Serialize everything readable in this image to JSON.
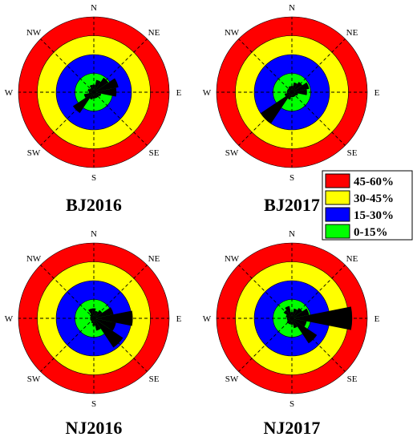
{
  "colors": {
    "band_0_15": "#00ff00",
    "band_15_30": "#0000ff",
    "band_30_45": "#ffff00",
    "band_45_60": "#ff0000",
    "petal": "#000000",
    "guides": "#000000"
  },
  "directions": [
    "N",
    "NE",
    "E",
    "SE",
    "S",
    "SW",
    "W",
    "NW"
  ],
  "legend": {
    "items": [
      {
        "label": "45-60%",
        "color": "#ff0000"
      },
      {
        "label": "30-45%",
        "color": "#ffff00"
      },
      {
        "label": "15-30%",
        "color": "#0000ff"
      },
      {
        "label": "0-15%",
        "color": "#00ff00"
      }
    ]
  },
  "chart_data": [
    {
      "type": "polar-bar",
      "title": "BJ2016",
      "rlim": [
        0,
        60
      ],
      "bands": [
        0,
        15,
        30,
        45,
        60
      ],
      "sector_width_deg": 22.5,
      "directions_deg": [
        0,
        22.5,
        45,
        67.5,
        90,
        112.5,
        135,
        157.5,
        180,
        202.5,
        225,
        247.5,
        270,
        292.5,
        315,
        337.5
      ],
      "values": [
        6,
        10,
        14,
        20,
        18,
        6,
        5,
        5,
        5,
        6,
        20,
        8,
        4,
        5,
        4,
        6
      ]
    },
    {
      "type": "polar-bar",
      "title": "BJ2017",
      "rlim": [
        0,
        60
      ],
      "bands": [
        0,
        15,
        30,
        45,
        60
      ],
      "sector_width_deg": 22.5,
      "directions_deg": [
        0,
        22.5,
        45,
        67.5,
        90,
        112.5,
        135,
        157.5,
        180,
        202.5,
        225,
        247.5,
        270,
        292.5,
        315,
        337.5
      ],
      "values": [
        5,
        8,
        10,
        14,
        12,
        5,
        4,
        4,
        4,
        6,
        30,
        6,
        4,
        4,
        4,
        5
      ]
    },
    {
      "type": "polar-bar",
      "title": "NJ2016",
      "rlim": [
        0,
        60
      ],
      "bands": [
        0,
        15,
        30,
        45,
        60
      ],
      "sector_width_deg": 22.5,
      "directions_deg": [
        0,
        22.5,
        45,
        67.5,
        90,
        112.5,
        135,
        157.5,
        180,
        202.5,
        225,
        247.5,
        270,
        292.5,
        315,
        337.5
      ],
      "values": [
        8,
        6,
        8,
        16,
        31,
        18,
        28,
        10,
        6,
        4,
        3,
        3,
        3,
        3,
        4,
        8
      ]
    },
    {
      "type": "polar-bar",
      "title": "NJ2017",
      "rlim": [
        0,
        60
      ],
      "bands": [
        0,
        15,
        30,
        45,
        60
      ],
      "sector_width_deg": 22.5,
      "directions_deg": [
        0,
        22.5,
        45,
        67.5,
        90,
        112.5,
        135,
        157.5,
        180,
        202.5,
        225,
        247.5,
        270,
        292.5,
        315,
        337.5
      ],
      "values": [
        5,
        8,
        10,
        14,
        48,
        12,
        24,
        8,
        5,
        5,
        5,
        4,
        4,
        5,
        8,
        10
      ]
    }
  ]
}
